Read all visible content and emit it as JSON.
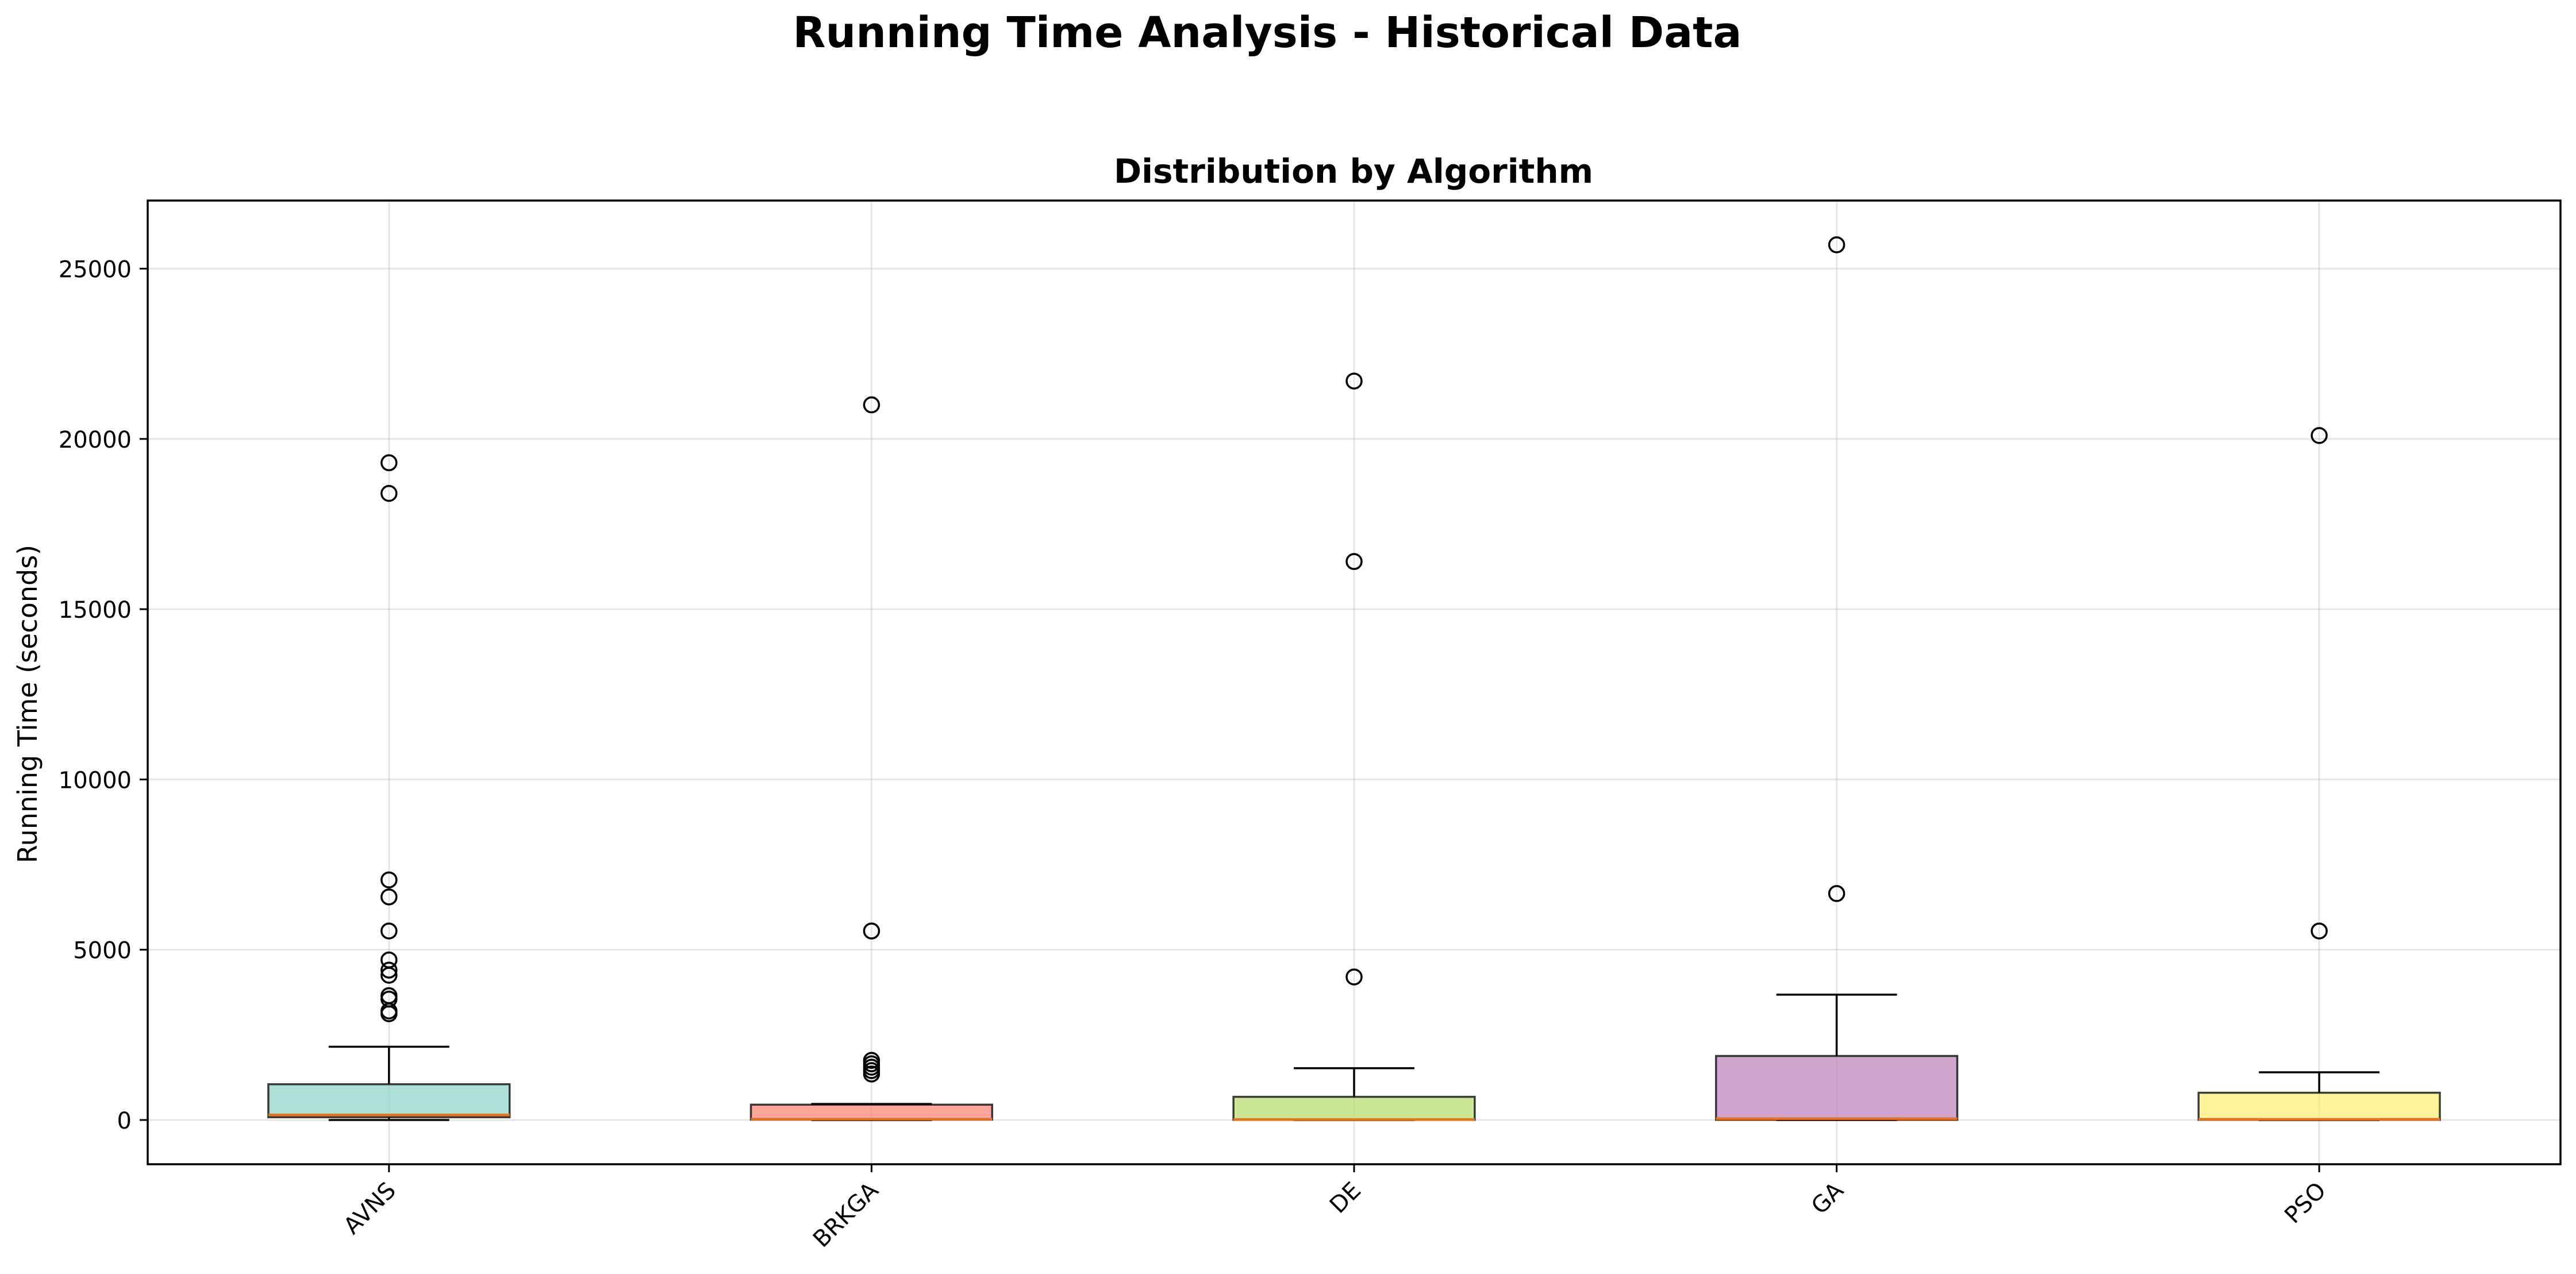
{
  "figure": {
    "suptitle": "Running Time Analysis - Historical Data"
  },
  "chart_data": {
    "type": "box",
    "title": "Distribution by Algorithm",
    "xlabel": "",
    "ylabel": "Running Time (seconds)",
    "ylim": [
      -1300,
      27000
    ],
    "yticks": [
      0,
      5000,
      10000,
      15000,
      20000,
      25000
    ],
    "grid": true,
    "categories": [
      "AVNS",
      "BRKGA",
      "DE",
      "GA",
      "PSO"
    ],
    "boxes": [
      {
        "name": "AVNS",
        "whisker_low": 0,
        "q1": 80,
        "median": 150,
        "q3": 1050,
        "whisker_high": 2150,
        "outliers": [
          19300,
          18400,
          7050,
          6550,
          5550,
          4700,
          4400,
          4250,
          3650,
          3550,
          3200,
          3120
        ],
        "color": "#8dd3c7"
      },
      {
        "name": "BRKGA",
        "whisker_low": 0,
        "q1": 10,
        "median": 25,
        "q3": 450,
        "whisker_high": 470,
        "outliers": [
          21000,
          5550,
          1750,
          1650,
          1550,
          1450,
          1350
        ],
        "color": "#fb8072"
      },
      {
        "name": "DE",
        "whisker_low": 0,
        "q1": 5,
        "median": 15,
        "q3": 680,
        "whisker_high": 1520,
        "outliers": [
          21700,
          16400,
          4200
        ],
        "color": "#b3de69"
      },
      {
        "name": "GA",
        "whisker_low": 0,
        "q1": 5,
        "median": 40,
        "q3": 1880,
        "whisker_high": 3680,
        "outliers": [
          25700,
          6650
        ],
        "color": "#bc80bd"
      },
      {
        "name": "PSO",
        "whisker_low": 0,
        "q1": 5,
        "median": 20,
        "q3": 800,
        "whisker_high": 1400,
        "outliers": [
          20100,
          5550
        ],
        "color": "#ffed6f"
      }
    ],
    "median_color": "#e8731c"
  }
}
